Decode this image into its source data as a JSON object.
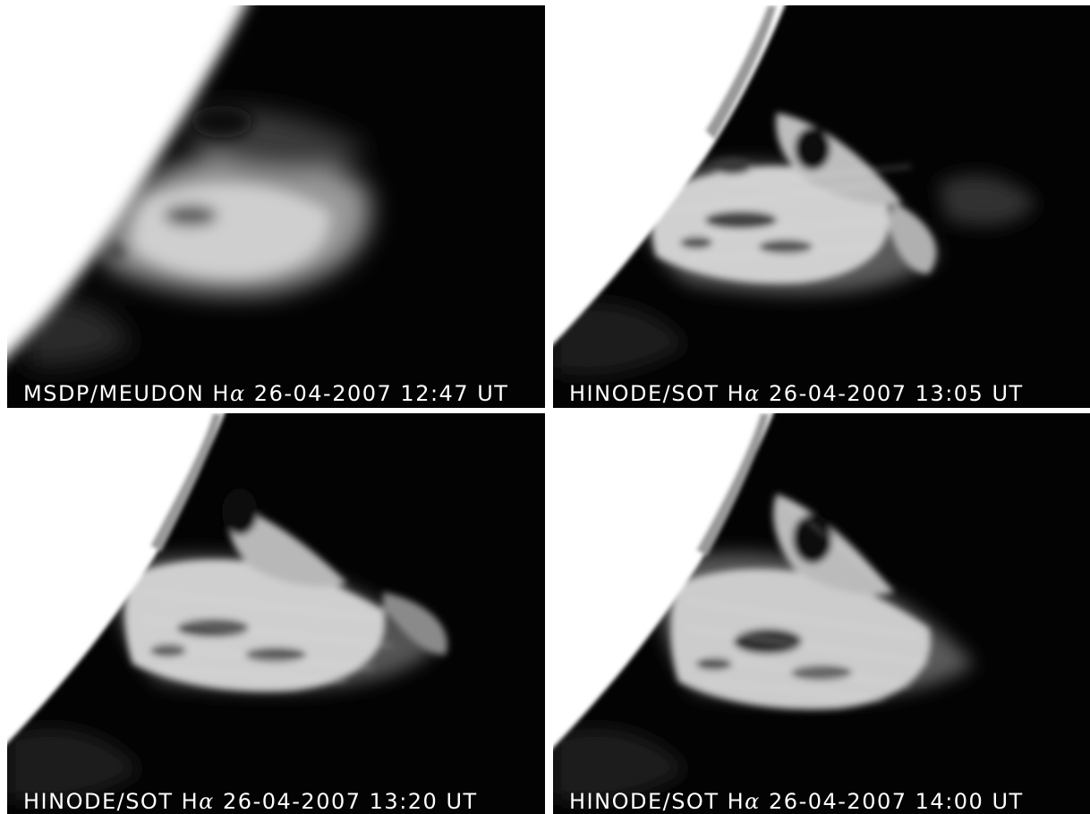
{
  "panels": [
    {
      "instrument": "MSDP/MEUDON",
      "line_prefix": "H",
      "line_suffix": "α",
      "date": "26-04-2007",
      "time": "12:47",
      "time_unit": "UT"
    },
    {
      "instrument": "HINODE/SOT",
      "line_prefix": "H",
      "line_suffix": "α",
      "date": "26-04-2007",
      "time": "13:05",
      "time_unit": "UT"
    },
    {
      "instrument": "HINODE/SOT",
      "line_prefix": "H",
      "line_suffix": "α",
      "date": "26-04-2007",
      "time": "13:20",
      "time_unit": "UT"
    },
    {
      "instrument": "HINODE/SOT",
      "line_prefix": "H",
      "line_suffix": "α",
      "date": "26-04-2007",
      "time": "14:00",
      "time_unit": "UT"
    }
  ],
  "colors": {
    "background": "#030303",
    "solar_disk": "#ffffff",
    "prominence": "#d8d8d8",
    "caption_text": "#ffffff"
  }
}
